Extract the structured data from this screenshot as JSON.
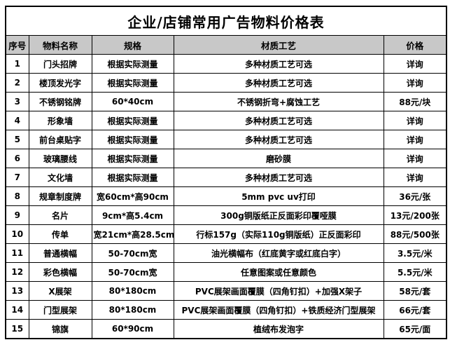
{
  "title": "企业/店铺常用广告物料价格表",
  "colors": {
    "header_bg": "#c8c8c8",
    "border": "#000000",
    "background": "#ffffff",
    "text": "#000000"
  },
  "table": {
    "headers": [
      "序号",
      "物料名称",
      "规格",
      "材质工艺",
      "价格"
    ],
    "rows": [
      {
        "seq": "1",
        "name": "门头招牌",
        "spec": "根据实际测量",
        "process": "多种材质工艺可选",
        "price": "详询"
      },
      {
        "seq": "2",
        "name": "楼顶发光字",
        "spec": "根据实际测量",
        "process": "多种材质工艺可选",
        "price": "详询"
      },
      {
        "seq": "3",
        "name": "不锈钢铭牌",
        "spec": "60*40cm",
        "process": "不锈钢折弯+腐蚀工艺",
        "price": "88元/块"
      },
      {
        "seq": "4",
        "name": "形象墙",
        "spec": "根据实际测量",
        "process": "多种材质工艺可选",
        "price": "详询"
      },
      {
        "seq": "5",
        "name": "前台桌贴字",
        "spec": "根据实际测量",
        "process": "多种材质工艺可选",
        "price": "详询"
      },
      {
        "seq": "6",
        "name": "玻璃腰线",
        "spec": "根据实际测量",
        "process": "磨砂膜",
        "price": "详询"
      },
      {
        "seq": "7",
        "name": "文化墙",
        "spec": "根据实际测量",
        "process": "多种材质工艺可选",
        "price": "详询"
      },
      {
        "seq": "8",
        "name": "规章制度牌",
        "spec": "宽60cm*高90cm",
        "process": "5mm pvc uv打印",
        "price": "36元/张"
      },
      {
        "seq": "9",
        "name": "名片",
        "spec": "9cm*高5.4cm",
        "process": "300g铜版纸正反面彩印覆哑膜",
        "price": "13元/200张"
      },
      {
        "seq": "10",
        "name": "传单",
        "spec": "宽21cm*高28.5cm",
        "process": "行标157g（实际110g铜版纸）正反面彩印",
        "price": "88元/500张"
      },
      {
        "seq": "11",
        "name": "普通横幅",
        "spec": "50-70cm宽",
        "process": "油光横幅布（红底黄字或红底白字）",
        "price": "3.5元/米"
      },
      {
        "seq": "12",
        "name": "彩色横幅",
        "spec": "50-70cm宽",
        "process": "任意图案或任意颜色",
        "price": "5.5元/米"
      },
      {
        "seq": "13",
        "name": "X展架",
        "spec": "80*180cm",
        "process": "PVC展架画面覆膜（四角钉扣）+加强X架子",
        "price": "58元/套"
      },
      {
        "seq": "14",
        "name": "门型展架",
        "spec": "80*180cm",
        "process": "PVC展架画面覆膜（四角钉扣）+铁质经济门型展架",
        "price": "66元/套"
      },
      {
        "seq": "15",
        "name": "锦旗",
        "spec": "60*90cm",
        "process": "植绒布发泡字",
        "price": "65元/面"
      }
    ]
  }
}
